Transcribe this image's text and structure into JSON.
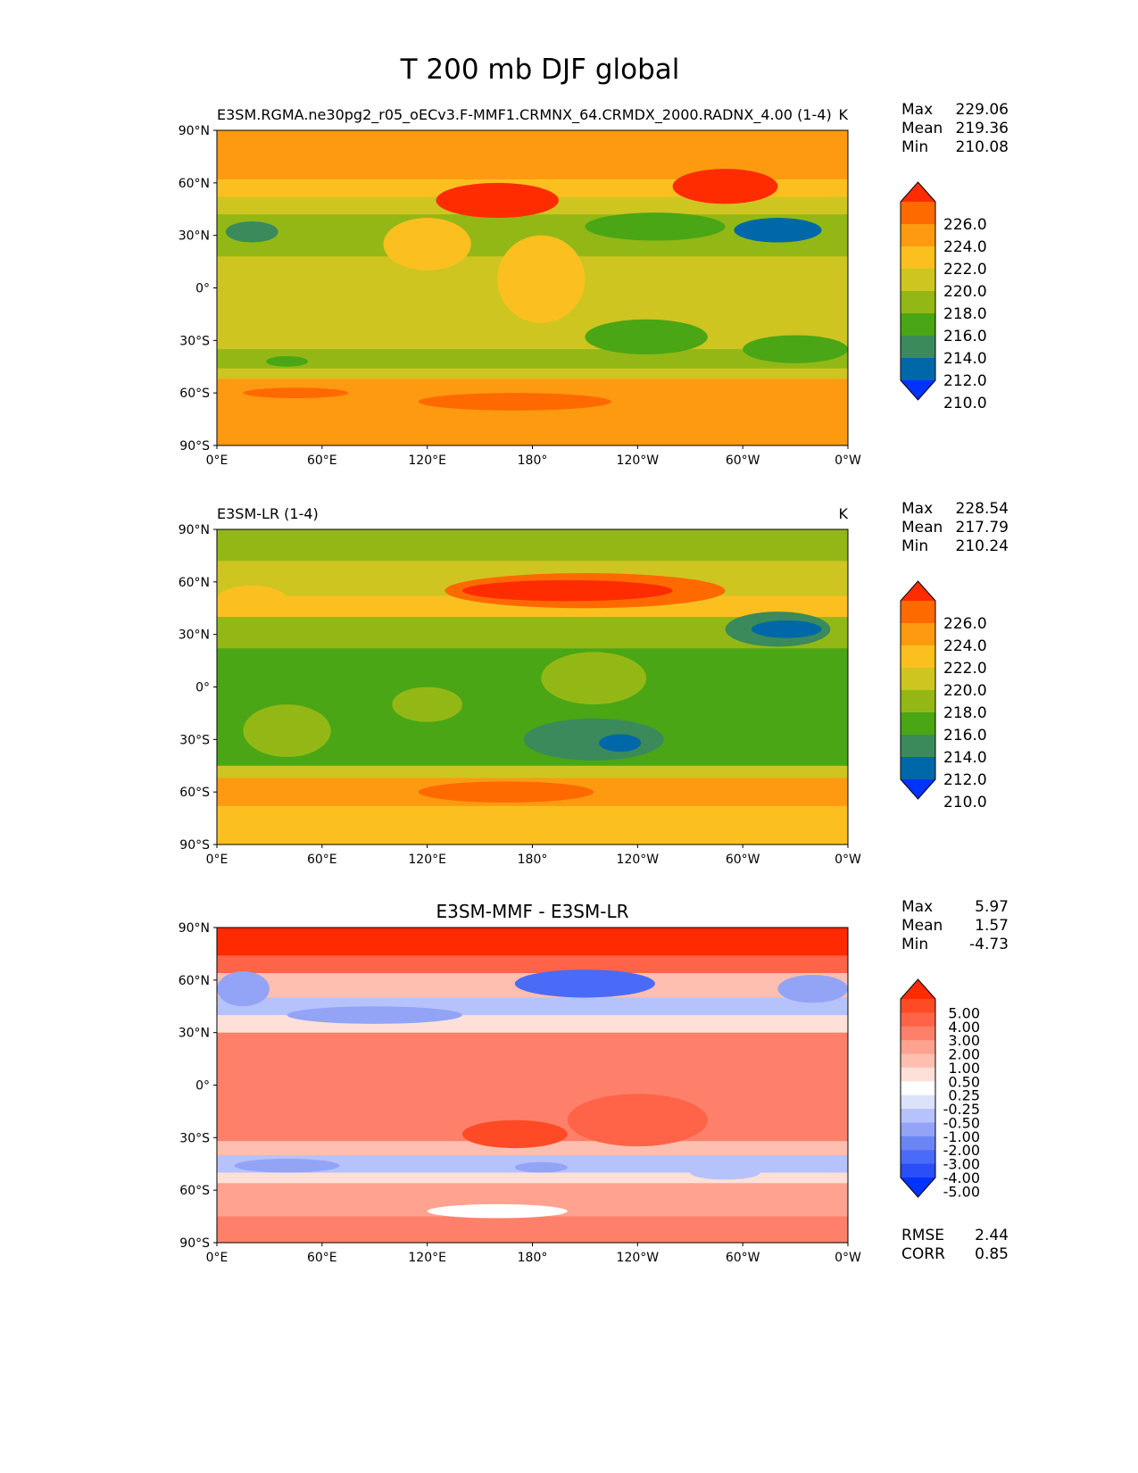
{
  "chart_data": {
    "type": "heatmap",
    "title": "T 200 mb DJF global",
    "xticks": [
      "0°E",
      "60°E",
      "120°E",
      "180°",
      "120°W",
      "60°W",
      "0°W"
    ],
    "yticks": [
      "90°N",
      "60°N",
      "30°N",
      "0°",
      "30°S",
      "60°S",
      "90°S"
    ],
    "panels": [
      {
        "title_left": "E3SM.RGMA.ne30pg2_r05_oECv3.F-MMF1.CRMNX_64.CRMDX_2000.RADNX_4.00 (1-4)",
        "title_center": "",
        "units": "K",
        "stats": [
          {
            "label": "Max",
            "value": "229.06"
          },
          {
            "label": "Mean",
            "value": "219.36"
          },
          {
            "label": "Min",
            "value": "210.08"
          }
        ],
        "levels": [
          "210.0",
          "212.0",
          "214.0",
          "216.0",
          "218.0",
          "220.0",
          "222.0",
          "224.0",
          "226.0"
        ],
        "colors": [
          "#0033ff",
          "#0068a8",
          "#3a8a5c",
          "#4aa614",
          "#93b816",
          "#cec521",
          "#fbc01f",
          "#fd9a10",
          "#ff6a00",
          "#ff2c00"
        ],
        "bands": [
          [
            90,
            62,
            7
          ],
          [
            62,
            52,
            6
          ],
          [
            52,
            42,
            5
          ],
          [
            42,
            18,
            4
          ],
          [
            18,
            -20,
            5
          ],
          [
            -20,
            -35,
            5
          ],
          [
            -35,
            -46,
            4
          ],
          [
            -46,
            -52,
            5
          ],
          [
            -52,
            -70,
            7
          ],
          [
            -70,
            -90,
            7
          ]
        ],
        "features": [
          [
            160,
            50,
            35,
            10,
            9
          ],
          [
            290,
            58,
            30,
            10,
            9
          ],
          [
            120,
            25,
            25,
            15,
            6
          ],
          [
            185,
            5,
            25,
            25,
            6
          ],
          [
            320,
            33,
            25,
            7,
            1
          ],
          [
            250,
            35,
            40,
            8,
            3
          ],
          [
            20,
            32,
            15,
            6,
            2
          ],
          [
            245,
            -28,
            35,
            10,
            3
          ],
          [
            330,
            -35,
            30,
            8,
            3
          ],
          [
            40,
            -42,
            12,
            3,
            3
          ],
          [
            45,
            -60,
            30,
            3,
            8
          ],
          [
            170,
            -65,
            55,
            5,
            8
          ]
        ],
        "footer": []
      },
      {
        "title_left": "E3SM-LR (1-4)",
        "title_center": "",
        "units": "K",
        "stats": [
          {
            "label": "Max",
            "value": "228.54"
          },
          {
            "label": "Mean",
            "value": "217.79"
          },
          {
            "label": "Min",
            "value": "210.24"
          }
        ],
        "levels": [
          "210.0",
          "212.0",
          "214.0",
          "216.0",
          "218.0",
          "220.0",
          "222.0",
          "224.0",
          "226.0"
        ],
        "colors": [
          "#0033ff",
          "#0068a8",
          "#3a8a5c",
          "#4aa614",
          "#93b816",
          "#cec521",
          "#fbc01f",
          "#fd9a10",
          "#ff6a00",
          "#ff2c00"
        ],
        "bands": [
          [
            90,
            72,
            4
          ],
          [
            72,
            52,
            5
          ],
          [
            52,
            40,
            6
          ],
          [
            40,
            22,
            4
          ],
          [
            22,
            -30,
            3
          ],
          [
            -30,
            -45,
            3
          ],
          [
            -45,
            -52,
            5
          ],
          [
            -52,
            -68,
            7
          ],
          [
            -68,
            -90,
            6
          ]
        ],
        "features": [
          [
            210,
            55,
            80,
            10,
            8
          ],
          [
            200,
            55,
            60,
            6,
            9
          ],
          [
            20,
            50,
            20,
            8,
            6
          ],
          [
            320,
            33,
            30,
            10,
            2
          ],
          [
            325,
            33,
            20,
            5,
            1
          ],
          [
            215,
            5,
            30,
            15,
            4
          ],
          [
            40,
            -25,
            25,
            15,
            4
          ],
          [
            120,
            -10,
            20,
            10,
            4
          ],
          [
            215,
            -30,
            40,
            12,
            2
          ],
          [
            230,
            -32,
            12,
            5,
            1
          ],
          [
            165,
            -60,
            50,
            6,
            8
          ]
        ],
        "footer": []
      },
      {
        "title_left": "",
        "title_center": "E3SM-MMF - E3SM-LR",
        "units": "",
        "stats": [
          {
            "label": "Max",
            "value": "5.97"
          },
          {
            "label": "Mean",
            "value": "1.57"
          },
          {
            "label": "Min",
            "value": "-4.73"
          }
        ],
        "levels": [
          "5.00",
          "4.00",
          "3.00",
          "2.00",
          "1.00",
          "0.50",
          "0.25",
          "-0.25",
          "-0.50",
          "-1.00",
          "-2.00",
          "-3.00",
          "-4.00",
          "-5.00"
        ],
        "colors": [
          "#ff2a00",
          "#ff4a26",
          "#ff6448",
          "#ff806a",
          "#ffa28f",
          "#ffbfb0",
          "#ffe0d8",
          "#ffffff",
          "#dde2fb",
          "#b6c2fb",
          "#93a4f7",
          "#6c85f5",
          "#4a6bf7",
          "#2a4ef8",
          "#0033ff"
        ],
        "reverse": true,
        "bands": [
          [
            90,
            74,
            0
          ],
          [
            74,
            64,
            2
          ],
          [
            64,
            50,
            5
          ],
          [
            50,
            40,
            9
          ],
          [
            40,
            30,
            6
          ],
          [
            30,
            -32,
            3
          ],
          [
            -32,
            -40,
            5
          ],
          [
            -40,
            -50,
            9
          ],
          [
            -50,
            -56,
            6
          ],
          [
            -56,
            -75,
            4
          ],
          [
            -75,
            -90,
            3
          ]
        ],
        "features": [
          [
            210,
            58,
            40,
            8,
            12
          ],
          [
            15,
            55,
            15,
            10,
            10
          ],
          [
            340,
            55,
            20,
            8,
            10
          ],
          [
            90,
            40,
            50,
            5,
            10
          ],
          [
            170,
            -28,
            30,
            8,
            1
          ],
          [
            40,
            -46,
            30,
            4,
            10
          ],
          [
            185,
            -47,
            15,
            3,
            10
          ],
          [
            290,
            -50,
            20,
            4,
            9
          ],
          [
            160,
            -72,
            40,
            4,
            7
          ],
          [
            240,
            -20,
            40,
            15,
            2
          ]
        ],
        "footer": [
          {
            "label": "RMSE",
            "value": "2.44"
          },
          {
            "label": "CORR",
            "value": "0.85"
          }
        ]
      }
    ]
  }
}
